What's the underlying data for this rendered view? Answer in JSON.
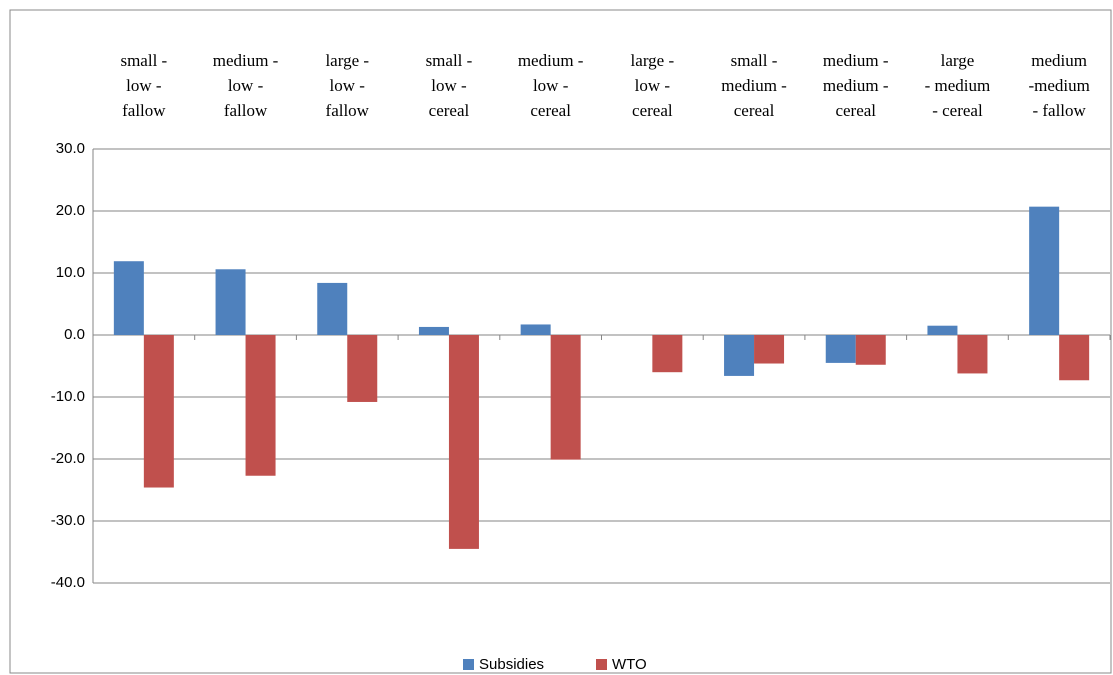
{
  "chart_data": {
    "type": "bar",
    "categories": [
      [
        "small -",
        "low -",
        "fallow"
      ],
      [
        "medium -",
        "low -",
        "fallow"
      ],
      [
        "large -",
        "low -",
        "fallow"
      ],
      [
        "small -",
        "low -",
        "cereal"
      ],
      [
        "medium -",
        "low -",
        "cereal"
      ],
      [
        "large -",
        "low -",
        "cereal"
      ],
      [
        "small -",
        "medium -",
        "cereal"
      ],
      [
        "medium -",
        "medium -",
        "cereal"
      ],
      [
        "large",
        "- medium",
        "- cereal"
      ],
      [
        "medium",
        "-medium",
        "- fallow"
      ]
    ],
    "series": [
      {
        "name": "Subsidies",
        "color": "#4f81bd",
        "values": [
          11.9,
          10.6,
          8.4,
          1.3,
          1.7,
          0,
          -6.6,
          -4.5,
          1.5,
          20.7
        ]
      },
      {
        "name": "WTO",
        "color": "#c0504d",
        "values": [
          -24.6,
          -22.7,
          -10.8,
          -34.5,
          -20.1,
          -6.0,
          -4.6,
          -4.8,
          -6.2,
          -7.3
        ]
      }
    ],
    "ylim": [
      -40,
      30
    ],
    "yticks": [
      {
        "value": -40,
        "label": "-40.0"
      },
      {
        "value": -30,
        "label": "-30.0"
      },
      {
        "value": -20,
        "label": "-20.0"
      },
      {
        "value": -10,
        "label": "-10.0"
      },
      {
        "value": 0,
        "label": "0.0"
      },
      {
        "value": 10,
        "label": "10.0"
      },
      {
        "value": 20,
        "label": "20.0"
      },
      {
        "value": 30,
        "label": "30.0"
      }
    ],
    "grid": true,
    "legend": "bottom"
  }
}
